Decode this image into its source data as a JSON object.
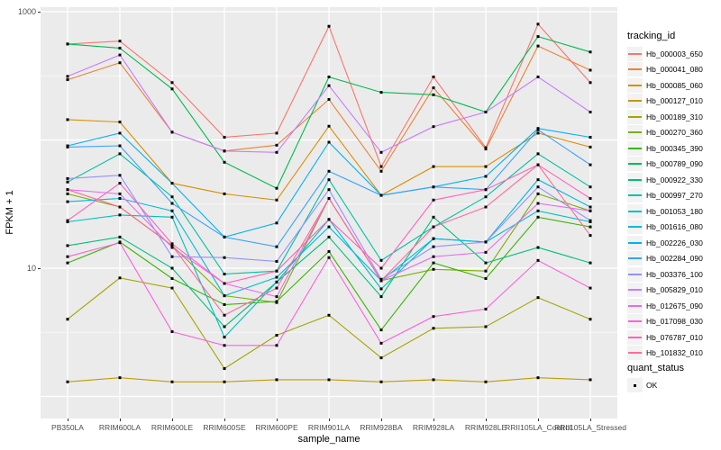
{
  "chart_data": {
    "type": "line",
    "title": "",
    "xlabel": "sample_name",
    "ylabel": "FPKM + 1",
    "y_scale": "log10",
    "ylim": [
      0.67,
      1084
    ],
    "y_tick_labels": [
      "1000",
      "10"
    ],
    "y_tick_values": [
      1000,
      10
    ],
    "grid": "white major gridlines at decades and each category, faint minor at half-decades, grey panel",
    "legend_position": "right",
    "panel_bg": "#EBEBEB",
    "legend_key_bg": "#F2F2F2",
    "point_marker": "small black square",
    "categories": [
      "PB350LA",
      "RRIM600LA",
      "RRIM600LE",
      "RRIM600SE",
      "RRIM600PE",
      "RRIM901LA",
      "RRIM928BA",
      "RRIM928LA",
      "RRIM928LE",
      "RRII105LA_Control",
      "RRII105LA_Stressed"
    ],
    "legend_title": "tracking_id",
    "series": [
      {
        "name": "Hb_000003_650",
        "color": "#F8766D",
        "values": [
          560,
          590,
          280,
          105,
          113,
          770,
          62,
          310,
          87,
          800,
          280
        ]
      },
      {
        "name": "Hb_000041_080",
        "color": "#EA8331",
        "values": [
          295,
          400,
          115,
          82,
          91,
          207,
          57,
          255,
          85,
          540,
          350
        ]
      },
      {
        "name": "Hb_000085_060",
        "color": "#D89000",
        "values": [
          144,
          138,
          46,
          38,
          34,
          128,
          37,
          62,
          62,
          113,
          88
        ]
      },
      {
        "name": "Hb_000127_010",
        "color": "#C09B00",
        "values": [
          1.3,
          1.4,
          1.3,
          1.3,
          1.35,
          1.35,
          1.3,
          1.35,
          1.3,
          1.4,
          1.35
        ]
      },
      {
        "name": "Hb_000189_310",
        "color": "#A3A500",
        "values": [
          4.0,
          8.4,
          7.0,
          1.65,
          3.0,
          4.3,
          2.0,
          3.4,
          3.5,
          5.9,
          4.0
        ]
      },
      {
        "name": "Hb_000270_360",
        "color": "#7CAE00",
        "values": [
          38,
          30,
          15,
          6.1,
          5.4,
          35,
          8.0,
          9.8,
          9.5,
          38,
          28
        ]
      },
      {
        "name": "Hb_000345_390",
        "color": "#39B600",
        "values": [
          11,
          16,
          8.3,
          5.2,
          5.5,
          13.5,
          3.3,
          11,
          8.3,
          25,
          21
        ]
      },
      {
        "name": "Hb_000789_090",
        "color": "#00BB4E",
        "values": [
          560,
          520,
          250,
          67,
          42,
          310,
          235,
          225,
          165,
          640,
          485
        ]
      },
      {
        "name": "Hb_000922_330",
        "color": "#00BF7D",
        "values": [
          15,
          17.5,
          10,
          3.5,
          7.8,
          17.5,
          6.0,
          25,
          11,
          14.5,
          11
        ]
      },
      {
        "name": "Hb_000997_270",
        "color": "#00C1A3",
        "values": [
          47,
          78,
          36,
          9.0,
          9.5,
          49,
          11.5,
          21,
          36,
          78,
          43
        ]
      },
      {
        "name": "Hb_001053_180",
        "color": "#00BFC4",
        "values": [
          23,
          26,
          25,
          2.9,
          7.8,
          24,
          6.9,
          17,
          16,
          28,
          23
        ]
      },
      {
        "name": "Hb_001616_080",
        "color": "#00BAE0",
        "values": [
          33,
          35,
          28,
          6.1,
          8.5,
          21,
          8.0,
          17,
          16,
          49,
          30
        ]
      },
      {
        "name": "Hb_002226_030",
        "color": "#00B0F6",
        "values": [
          90,
          113,
          46,
          17.5,
          22.5,
          96,
          37,
          43,
          52,
          123,
          105
        ]
      },
      {
        "name": "Hb_002284_090",
        "color": "#35A2FF",
        "values": [
          88,
          90,
          32,
          17.5,
          14.7,
          57,
          37,
          43,
          41,
          120,
          64
        ]
      },
      {
        "name": "Hb_003376_100",
        "color": "#9590FF",
        "values": [
          50,
          53,
          12.3,
          12.1,
          11.3,
          41,
          8.2,
          14.7,
          16,
          43,
          23.5
        ]
      },
      {
        "name": "Hb_005829_010",
        "color": "#C77CFF",
        "values": [
          313,
          460,
          115,
          82,
          80,
          265,
          80,
          127,
          165,
          310,
          165
        ]
      },
      {
        "name": "Hb_012675_090",
        "color": "#E76BF3",
        "values": [
          41,
          38,
          14.5,
          7.6,
          6.0,
          35,
          8.0,
          12.3,
          13.3,
          32,
          28
        ]
      },
      {
        "name": "Hb_017098_030",
        "color": "#FA62DB",
        "values": [
          12.3,
          15.8,
          3.2,
          2.5,
          2.5,
          12.1,
          2.6,
          4.2,
          4.8,
          11.5,
          7.0
        ]
      },
      {
        "name": "Hb_076787_010",
        "color": "#FF62BC",
        "values": [
          23.5,
          46,
          15.5,
          7.6,
          9.5,
          24,
          10,
          34,
          41,
          64,
          35
        ]
      },
      {
        "name": "Hb_101832_010",
        "color": "#FF6A98",
        "values": [
          41,
          30,
          15,
          4.3,
          7.0,
          35,
          8.0,
          21,
          30,
          64,
          18
        ]
      }
    ],
    "quant_legend": {
      "title": "quant_status",
      "items": [
        {
          "label": "OK",
          "marker": "black-square"
        }
      ]
    }
  }
}
